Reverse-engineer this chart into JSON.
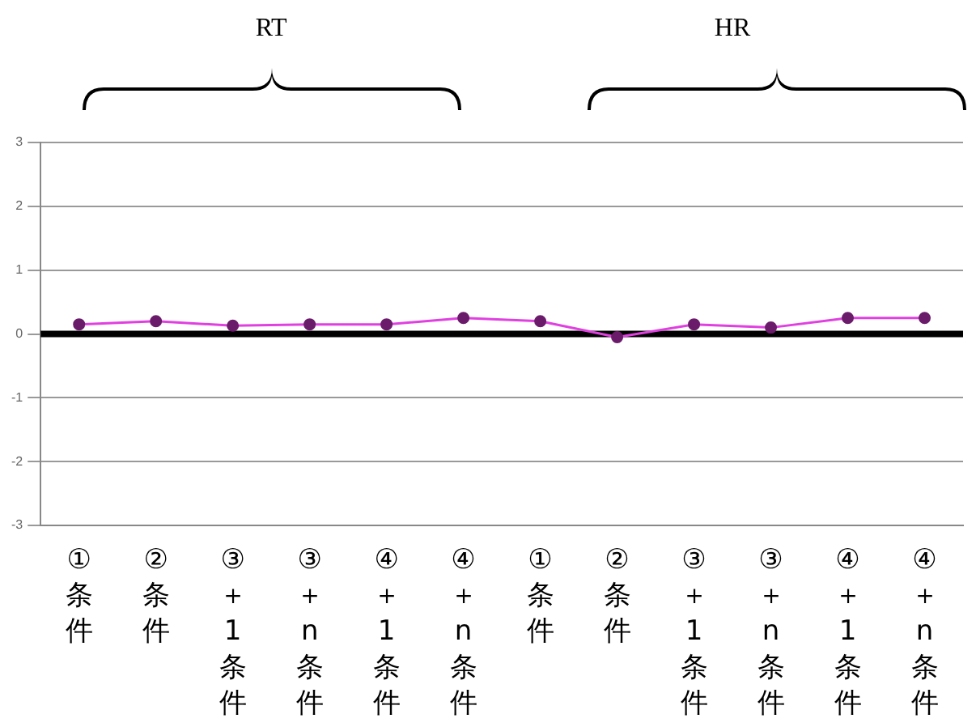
{
  "chart_data": {
    "type": "line",
    "categories": [
      "①条件",
      "②条件",
      "③＋1条件",
      "③＋n条件",
      "④＋1条件",
      "④＋n条件",
      "①条件",
      "②条件",
      "③＋1条件",
      "③＋n条件",
      "④＋1条件",
      "④＋n条件"
    ],
    "series": [
      {
        "color": "#e040e0",
        "values": [
          0.15,
          0.2,
          0.13,
          0.15,
          0.15,
          0.25,
          0.2,
          -0.05,
          0.15,
          0.1,
          0.25,
          0.25
        ]
      }
    ],
    "ylim": [
      -3,
      3
    ],
    "yticks": [
      -3,
      -2,
      -1,
      0,
      1,
      2,
      3
    ],
    "grid": "y",
    "marker": "circle",
    "legend": false,
    "ref_lines": [
      {
        "axis": "y",
        "value": 0,
        "color": "#000000"
      }
    ],
    "annotations": [
      "RT",
      "HR"
    ]
  }
}
